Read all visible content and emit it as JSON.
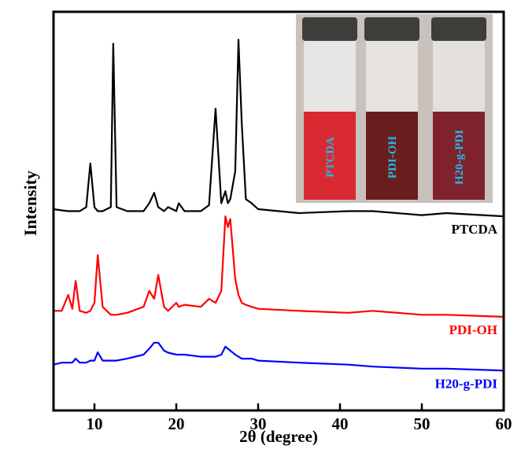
{
  "chart_data": {
    "type": "line",
    "x_label": "2θ (degree)",
    "y_label": "Intensity",
    "x": [
      5,
      6,
      6.8,
      7.3,
      7.7,
      8.2,
      9,
      9.5,
      10,
      10.4,
      11,
      12,
      12.3,
      12.7,
      14,
      16,
      16.7,
      17.3,
      17.8,
      18.5,
      19,
      20,
      20.3,
      21,
      23,
      24,
      24.8,
      25.5,
      26,
      26.3,
      26.6,
      27.2,
      27.6,
      28,
      28.5,
      29.2,
      30,
      35,
      41,
      44,
      50,
      53,
      60
    ],
    "series": [
      {
        "name": "PTCDA",
        "color": "#000000",
        "values": [
          50.5,
          50.2,
          50,
          50,
          50,
          50,
          51,
          62,
          51,
          50,
          50,
          51,
          92,
          51,
          50,
          50,
          52,
          54.6,
          51,
          50,
          51,
          50,
          52,
          50,
          50,
          51.5,
          75.7,
          52,
          55,
          52,
          53,
          60,
          93,
          72,
          53,
          52,
          50.5,
          49.5,
          50,
          50,
          49,
          49.5,
          48.7
        ]
      },
      {
        "name": "PDI-OH",
        "color": "#ff0000",
        "values": [
          25,
          25,
          29,
          25.5,
          32.5,
          25,
          24.5,
          25,
          27,
          39,
          26,
          24,
          24,
          24,
          24.5,
          26,
          30,
          28,
          34,
          26,
          25,
          27,
          26,
          26.5,
          26,
          28,
          27,
          30,
          48.7,
          46,
          48,
          33,
          29,
          27,
          26.5,
          26,
          25.5,
          25,
          24.5,
          25,
          24,
          24,
          23.5
        ]
      },
      {
        "name": "H20-g-PDI",
        "color": "#0000ff",
        "values": [
          11.5,
          12,
          12,
          12,
          13,
          12,
          12,
          12.5,
          12.5,
          14.6,
          12.5,
          12.5,
          12.5,
          12.5,
          13,
          14,
          15.5,
          17,
          17,
          15,
          14.5,
          14,
          14,
          14,
          13.5,
          13.5,
          13.5,
          14,
          16,
          15.5,
          15,
          14,
          13.5,
          13,
          13,
          13,
          12.5,
          12,
          11.5,
          11,
          10.5,
          10.5,
          10
        ]
      }
    ],
    "xlim": [
      5,
      60
    ],
    "xticks": [
      10,
      20,
      30,
      40,
      50,
      60
    ],
    "ylim": [
      0,
      100
    ],
    "inset_labels": [
      "PTCDA",
      "PDI-OH",
      "H20-g-PDI"
    ]
  }
}
